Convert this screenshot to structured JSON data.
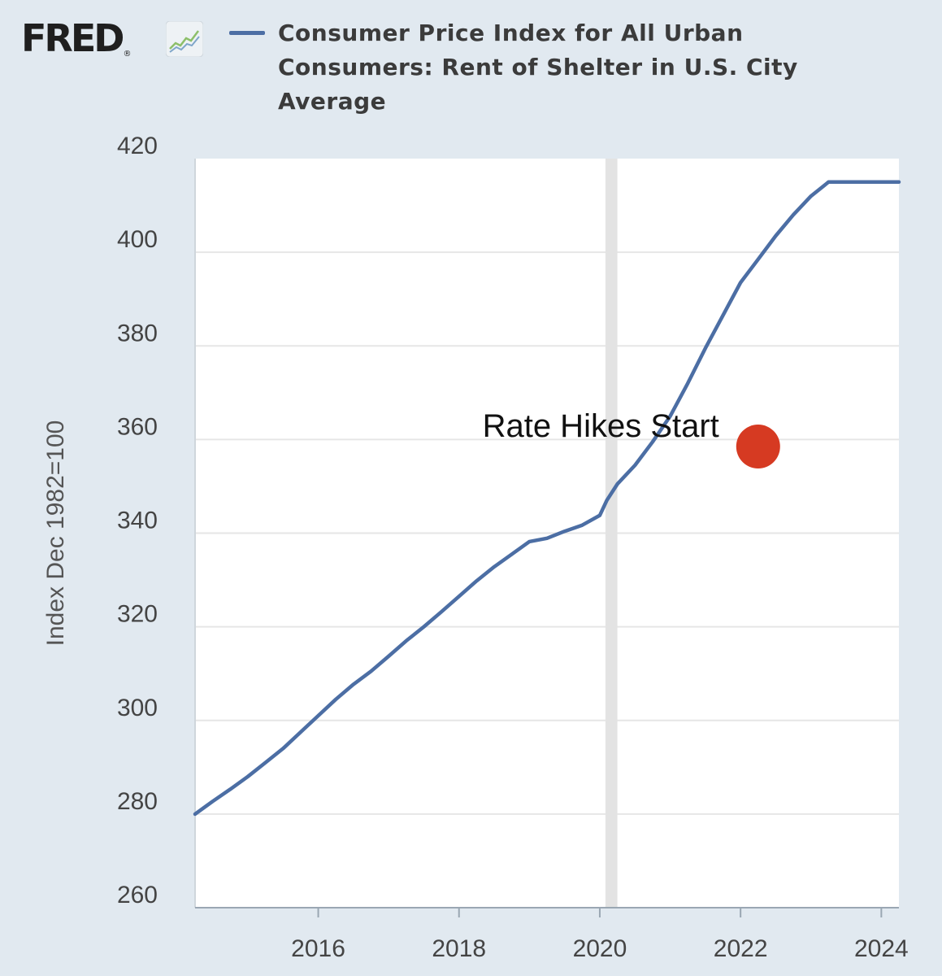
{
  "header": {
    "logo_text": "FRED",
    "logo_reg": "®",
    "title": "Consumer Price Index for All Urban Consumers: Rent of Shelter in U.S. City Average"
  },
  "colors": {
    "background": "#e1e9f0",
    "plot_background": "#ffffff",
    "series_line": "#4c6ea4",
    "recession_band": "#e3e3e3",
    "marker": "#d63a22",
    "grid": "#e6e6e6"
  },
  "chart_data": {
    "type": "line",
    "title": "Consumer Price Index for All Urban Consumers: Rent of Shelter in U.S. City Average",
    "xlabel": "",
    "ylabel": "Index Dec 1982=100",
    "xlim": [
      2014.25,
      2024.25
    ],
    "ylim": [
      260,
      420
    ],
    "x_ticks": [
      2016,
      2018,
      2020,
      2022,
      2024
    ],
    "x_tick_labels": [
      "2016",
      "2018",
      "2020",
      "2022",
      "2024"
    ],
    "y_ticks": [
      260,
      280,
      300,
      320,
      340,
      360,
      380,
      400,
      420
    ],
    "y_tick_labels": [
      "260",
      "280",
      "300",
      "320",
      "340",
      "360",
      "380",
      "400",
      "420"
    ],
    "grid": true,
    "recession_band": [
      2020.08,
      2020.25
    ],
    "series": [
      {
        "name": "Consumer Price Index for All Urban Consumers: Rent of Shelter in U.S. City Average",
        "x": [
          2014.25,
          2014.5,
          2014.75,
          2015.0,
          2015.25,
          2015.5,
          2015.75,
          2016.0,
          2016.25,
          2016.5,
          2016.75,
          2017.0,
          2017.25,
          2017.5,
          2017.75,
          2018.0,
          2018.25,
          2018.5,
          2018.75,
          2019.0,
          2019.25,
          2019.5,
          2019.75,
          2020.0,
          2020.1,
          2020.25,
          2020.5,
          2020.75,
          2021.0,
          2021.25,
          2021.5,
          2021.75,
          2022.0,
          2022.25,
          2022.5,
          2022.75,
          2023.0,
          2023.25,
          2023.5,
          2023.75,
          2024.0,
          2024.25
        ],
        "values": [
          280.0,
          282.7,
          285.3,
          288.0,
          291.0,
          294.0,
          297.5,
          301.0,
          304.5,
          307.7,
          310.5,
          313.7,
          317.0,
          320.0,
          323.2,
          326.5,
          329.8,
          332.8,
          335.5,
          338.2,
          338.9,
          340.4,
          341.7,
          343.8,
          347.0,
          350.5,
          354.5,
          359.5,
          365.0,
          372.0,
          379.5,
          386.5,
          393.5,
          398.5,
          403.5,
          408.0,
          412.0,
          415.0,
          415.0,
          415.0,
          415.0,
          415.0
        ]
      }
    ],
    "annotations": [
      {
        "text": "Rate Hikes Start",
        "x": 2022.25,
        "y": 358.5
      }
    ]
  }
}
